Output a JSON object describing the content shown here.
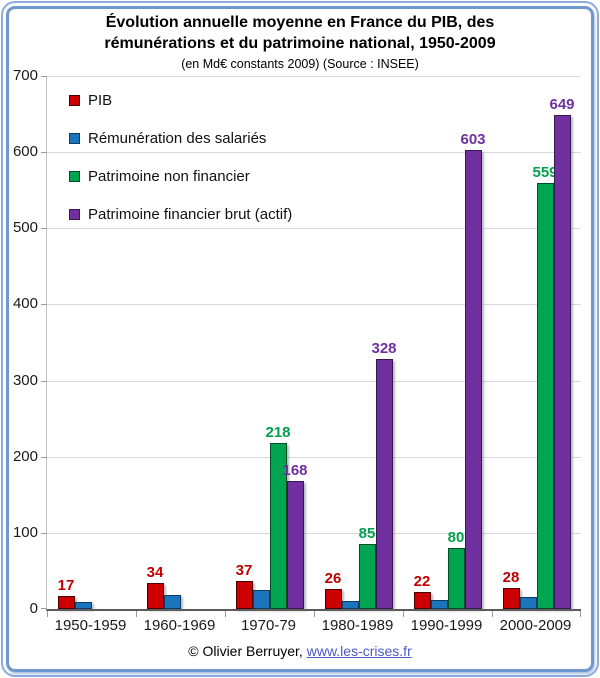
{
  "header": {
    "title": "Évolution annuelle moyenne en France du PIB, des rémunérations et du patrimoine national, 1950-2009",
    "subtitle": "(en Md€ constants 2009) (Source : INSEE)"
  },
  "chart_data": {
    "type": "bar",
    "categories": [
      "1950-1959",
      "1960-1969",
      "1970-79",
      "1980-1989",
      "1990-1999",
      "2000-2009"
    ],
    "series": [
      {
        "name": "PIB",
        "color": "#CC0000",
        "border_color": "#4D0000",
        "label_color": "#C00000",
        "show_value_labels": true,
        "values": [
          17,
          34,
          37,
          26,
          22,
          28
        ]
      },
      {
        "name": "Rémunération des salariés",
        "color": "#1B75BC",
        "border_color": "#0C3B66",
        "label_color": "#1B75BC",
        "show_value_labels": false,
        "values": [
          9,
          18,
          25,
          10,
          12,
          16
        ]
      },
      {
        "name": "Patrimoine non financier",
        "color": "#00A551",
        "border_color": "#004D25",
        "label_color": "#00A04C",
        "show_value_labels": true,
        "values": [
          null,
          null,
          218,
          85,
          80,
          559
        ]
      },
      {
        "name": "Patrimoine financier brut (actif)",
        "color": "#7030A0",
        "border_color": "#371850",
        "label_color": "#7030A0",
        "show_value_labels": true,
        "values": [
          null,
          null,
          168,
          328,
          603,
          649
        ]
      }
    ],
    "ylim": [
      0,
      700
    ],
    "ytick_step": 100,
    "grid": true,
    "legend_position": "inside-top-left"
  },
  "footer": {
    "credit_text": "© Olivier Berruyer,",
    "link_text": "www.les-crises.fr"
  },
  "colors": {
    "frame_border": "#6F98CF",
    "gridline": "#D9D9D9",
    "axis": "#595959",
    "y_axis_line": "#C6C6C6",
    "tick": "#9A9A9A",
    "link": "#4A5AC4",
    "text": "#1A1A1A"
  }
}
